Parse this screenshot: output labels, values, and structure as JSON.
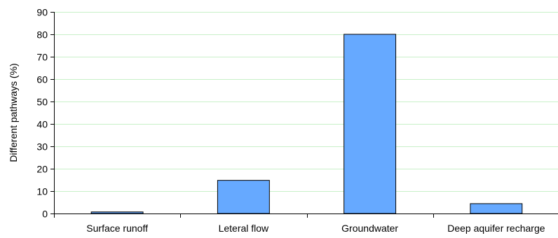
{
  "chart_data": {
    "type": "bar",
    "title": "",
    "xlabel": "",
    "ylabel": "Different pathways (%)",
    "categories": [
      "Surface runoff",
      "Leteral flow",
      "Groundwater",
      "Deep aquifer recharge"
    ],
    "values": [
      0.7,
      14.8,
      80.0,
      4.4
    ],
    "ylim": [
      0,
      90
    ],
    "yticks": [
      0,
      10,
      20,
      30,
      40,
      50,
      60,
      70,
      80,
      90
    ],
    "grid": true,
    "legend": "none",
    "colors": {
      "bar_fill": "#66a9ff",
      "bar_stroke": "#000000",
      "grid": "#c8f0c8",
      "axis": "#000000"
    }
  }
}
